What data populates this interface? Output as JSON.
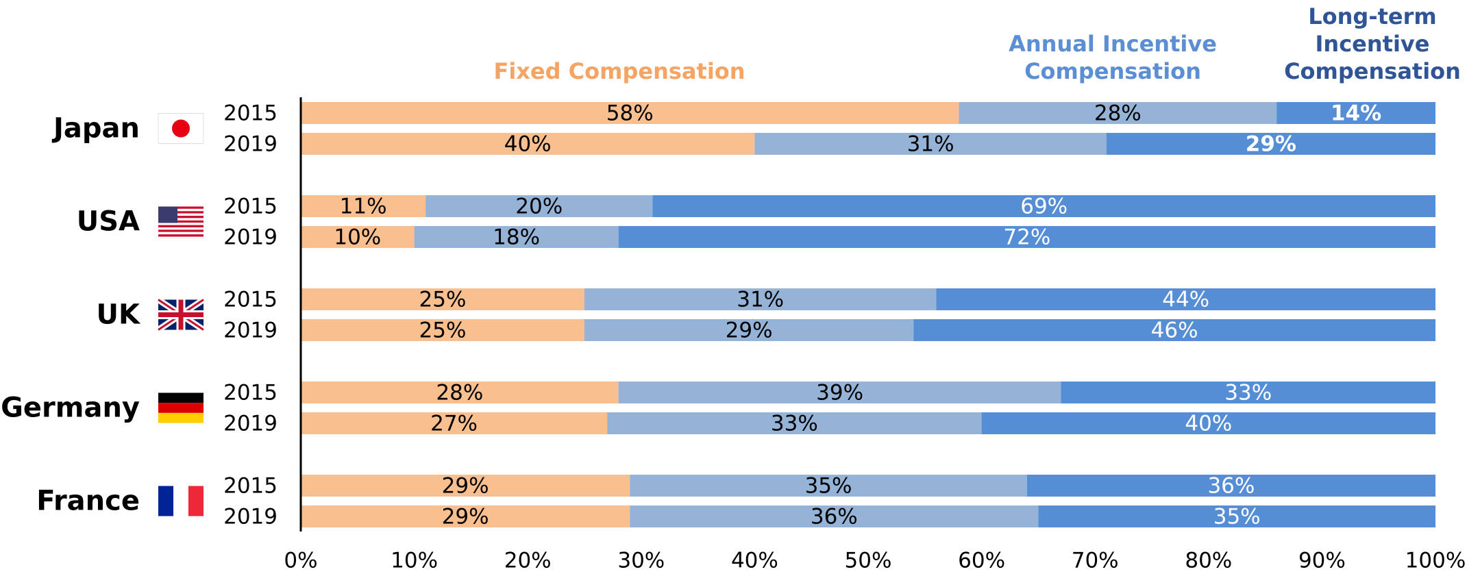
{
  "chart_data": {
    "type": "bar",
    "orientation": "horizontal",
    "stacked": true,
    "groups": [
      "Japan",
      "USA",
      "UK",
      "Germany",
      "France"
    ],
    "categories": [
      "2015",
      "2019",
      "2015",
      "2019",
      "2015",
      "2019",
      "2015",
      "2019",
      "2015",
      "2019"
    ],
    "series": [
      {
        "name": "Fixed Compensation",
        "color": "#f9bf8f",
        "label_color": "#f5a463",
        "text_color": "#000000",
        "values": [
          58,
          40,
          11,
          10,
          25,
          25,
          28,
          27,
          29,
          29
        ],
        "value_labels": [
          "58%",
          "40%",
          "11%",
          "10%",
          "25%",
          "25%",
          "28%",
          "27%",
          "29%",
          "29%"
        ]
      },
      {
        "name": "Annual Incentive Compensation",
        "color": "#95b3d7",
        "label_color": "#5b8ed3",
        "text_color": "#000000",
        "values": [
          28,
          31,
          20,
          18,
          31,
          29,
          39,
          33,
          35,
          36
        ],
        "value_labels": [
          "28%",
          "31%",
          "20%",
          "18%",
          "31%",
          "29%",
          "39%",
          "33%",
          "35%",
          "36%"
        ]
      },
      {
        "name": "Long-term Incentive Compensation",
        "color": "#558ed5",
        "label_color": "#2f5597",
        "text_color": "#ffffff",
        "values": [
          14,
          29,
          69,
          72,
          44,
          46,
          33,
          40,
          36,
          35
        ],
        "value_labels": [
          "14%",
          "29%",
          "69%",
          "72%",
          "44%",
          "46%",
          "33%",
          "40%",
          "36%",
          "35%"
        ]
      }
    ],
    "xlim": [
      0,
      100
    ],
    "xticks": [
      {
        "value": 0,
        "label": "0%"
      },
      {
        "value": 10,
        "label": "10%"
      },
      {
        "value": 20,
        "label": "20%"
      },
      {
        "value": 30,
        "label": "30%"
      },
      {
        "value": 40,
        "label": "40%"
      },
      {
        "value": 50,
        "label": "50%"
      },
      {
        "value": 60,
        "label": "60%"
      },
      {
        "value": 70,
        "label": "70%"
      },
      {
        "value": 80,
        "label": "80%"
      },
      {
        "value": 90,
        "label": "90%"
      },
      {
        "value": 100,
        "label": "100%"
      }
    ],
    "grid": false
  }
}
